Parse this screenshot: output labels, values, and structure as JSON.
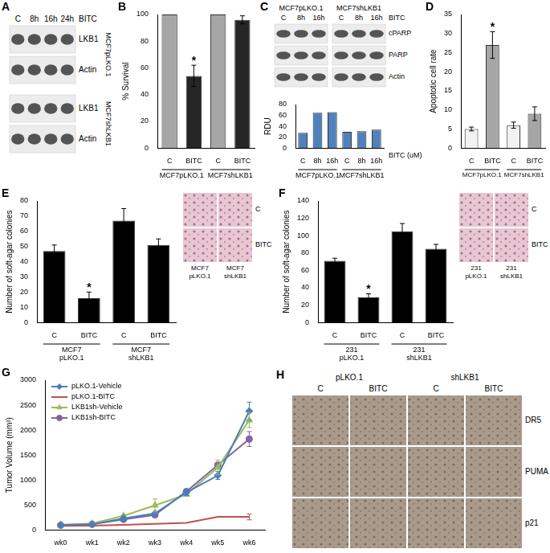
{
  "chart_data": [
    {
      "panel": "B",
      "type": "bar",
      "y_label": "% Survival",
      "groups": [
        {
          "label": "MCF7pLKO.1",
          "categories": [
            "C",
            "BITC"
          ]
        },
        {
          "label": "MCF7shLKB1",
          "categories": [
            "C",
            "BITC"
          ]
        }
      ],
      "values": [
        100,
        54,
        100,
        96
      ],
      "errors": [
        null,
        8,
        null,
        3
      ],
      "colors": [
        "#a6a6a6",
        "#262626",
        "#a6a6a6",
        "#262626"
      ],
      "annotations": [
        {
          "text": "*",
          "index": 1
        }
      ],
      "ylim": [
        0,
        100
      ],
      "yticks": [
        0,
        20,
        40,
        60,
        80,
        100
      ],
      "grid": false
    },
    {
      "type": "bar",
      "y_label": "RDU",
      "x_label": "BITC (uM)",
      "groups": [
        {
          "label": "MCF7pLKO.1",
          "categories": [
            "C",
            "8h",
            "16h"
          ]
        },
        {
          "label": "MCF7shLKB1",
          "categories": [
            "C",
            "8h",
            "16h"
          ]
        }
      ],
      "values": [
        28,
        65,
        66,
        30,
        31,
        34
      ],
      "color": "#4f81bd",
      "ylim": [
        0,
        80
      ],
      "yticks": [
        0,
        20,
        40,
        60,
        80
      ],
      "grid": false
    },
    {
      "panel": "D",
      "type": "bar",
      "y_label": "Apoptotic cell rate",
      "groups": [
        {
          "label": "MCF7pLKO.1",
          "categories": [
            "C",
            "BITC"
          ]
        },
        {
          "label": "MCF7shLKB1",
          "categories": [
            "C",
            "BITC"
          ]
        }
      ],
      "values": [
        5,
        27,
        6,
        9
      ],
      "errors": [
        0.5,
        3.5,
        0.8,
        1.8
      ],
      "colors": [
        "#f2f2f2",
        "#a6a6a6",
        "#f2f2f2",
        "#a6a6a6"
      ],
      "annotations": [
        {
          "text": "*",
          "index": 1
        }
      ],
      "ylim": [
        0,
        35
      ],
      "yticks": [
        0,
        5,
        10,
        15,
        20,
        25,
        30,
        35
      ],
      "grid": false
    },
    {
      "panel": "E",
      "type": "bar",
      "y_label": "Number of soft-agar colonies",
      "groups": [
        {
          "label": "MCF7 pLKO.1",
          "categories": [
            "C",
            "BITC"
          ]
        },
        {
          "label": "MCF7 shLKB1",
          "categories": [
            "C",
            "BITC"
          ]
        }
      ],
      "values": [
        47,
        16,
        67,
        51
      ],
      "errors": [
        4,
        4,
        8,
        4
      ],
      "color": "#000000",
      "annotations": [
        {
          "text": "*",
          "index": 1
        }
      ],
      "ylim": [
        0,
        80
      ],
      "yticks": [
        0,
        10,
        20,
        30,
        40,
        50,
        60,
        70,
        80
      ],
      "grid": false
    },
    {
      "panel": "F",
      "type": "bar",
      "y_label": "Number of soft-agar colonies",
      "groups": [
        {
          "label": "231 pLKO.1",
          "categories": [
            "C",
            "BITC"
          ]
        },
        {
          "label": "231 shLKB1",
          "categories": [
            "C",
            "BITC"
          ]
        }
      ],
      "values": [
        71,
        29,
        105,
        85
      ],
      "errors": [
        3,
        4,
        9,
        5
      ],
      "color": "#000000",
      "annotations": [
        {
          "text": "*",
          "index": 1
        }
      ],
      "ylim": [
        0,
        140
      ],
      "yticks": [
        0,
        20,
        40,
        60,
        80,
        100,
        120,
        140
      ],
      "grid": false
    },
    {
      "panel": "G",
      "type": "line",
      "y_label": "Tumor Volume (mm³)",
      "categories": [
        "wk0",
        "wk1",
        "wk2",
        "wk3",
        "wk4",
        "wk5",
        "wk6"
      ],
      "series": [
        {
          "name": "pLKO.1-Vehicle",
          "color": "#4a7ebb",
          "marker": "diamond",
          "values": [
            100,
            110,
            230,
            330,
            750,
            1090,
            2380
          ],
          "errors": [
            null,
            null,
            60,
            null,
            60,
            80,
            180
          ]
        },
        {
          "name": "pLKO.1-BITC",
          "color": "#c0504d",
          "marker": "none",
          "values": [
            80,
            85,
            100,
            120,
            140,
            260,
            260
          ],
          "errors": [
            null,
            null,
            null,
            null,
            null,
            null,
            60
          ]
        },
        {
          "name": "LKB1sh-Vehicle",
          "color": "#9bbb59",
          "marker": "triangle",
          "values": [
            100,
            130,
            280,
            490,
            710,
            1250,
            2200
          ],
          "errors": [
            null,
            null,
            null,
            130,
            null,
            150,
            150
          ]
        },
        {
          "name": "LKB1sh-BITC",
          "color": "#8064a2",
          "marker": "circle",
          "values": [
            90,
            110,
            210,
            300,
            770,
            1300,
            1820
          ],
          "errors": [
            null,
            null,
            null,
            null,
            null,
            null,
            150
          ]
        }
      ],
      "ylim": [
        0,
        3000
      ],
      "yticks": [
        0,
        500,
        1000,
        1500,
        2000,
        2500,
        3000
      ],
      "legend": "upper left",
      "grid": false
    }
  ],
  "blots": [
    {
      "panel": "A",
      "treatment": "BITC",
      "lanes": [
        "C",
        "8h",
        "16h",
        "24h"
      ],
      "sections": [
        {
          "label": "MCF7pLKO.1",
          "rows": [
            "LKB1",
            "Actin"
          ]
        },
        {
          "label": "MCF7shLKB1",
          "rows": [
            "LKB1",
            "Actin"
          ]
        }
      ]
    },
    {
      "panel": "C",
      "treatment": "BITC",
      "sections": [
        {
          "label": "MCF7pLKO.1",
          "lanes": [
            "C",
            "8h",
            "16h"
          ]
        },
        {
          "label": "MCF7shLKB1",
          "lanes": [
            "C",
            "8h",
            "16h"
          ]
        }
      ],
      "rows": [
        "cPARP",
        "PARP",
        "Actin"
      ]
    }
  ],
  "micrographs": [
    {
      "columns": [
        "MCF7 pLKO.1",
        "MCF7 shLKB1"
      ],
      "rows": [
        "C",
        "BITC"
      ]
    },
    {
      "columns": [
        "231 pLKO.1",
        "231 shLKB1"
      ],
      "rows": [
        "C",
        "BITC"
      ]
    },
    {
      "panel": "H",
      "groups": [
        {
          "label": "pLKO.1",
          "columns": [
            "C",
            "BITC"
          ]
        },
        {
          "label": "shLKB1",
          "columns": [
            "C",
            "BITC"
          ]
        }
      ],
      "rows": [
        "DR5",
        "PUMA",
        "p21"
      ]
    }
  ]
}
